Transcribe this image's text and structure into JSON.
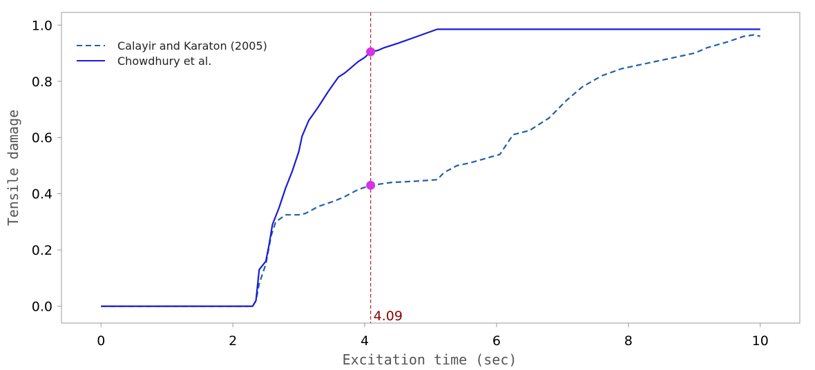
{
  "chart_data": {
    "type": "line",
    "xlabel": "Excitation time (sec)",
    "ylabel": "Tensile damage",
    "xlim": [
      -0.6,
      10.6
    ],
    "ylim": [
      -0.06,
      1.045
    ],
    "xticks": [
      0,
      2,
      4,
      6,
      8,
      10
    ],
    "xtick_labels": [
      "0",
      "2",
      "4",
      "6",
      "8",
      "10"
    ],
    "yticks": [
      0.0,
      0.2,
      0.4,
      0.6,
      0.8,
      1.0
    ],
    "ytick_labels": [
      "0.0",
      "0.2",
      "0.4",
      "0.6",
      "0.8",
      "1.0"
    ],
    "grid": false,
    "legend_position": "top-left",
    "series": [
      {
        "name": "Calayir and Karaton (2005)",
        "style": "dashed",
        "color": "#1f5fa8",
        "x": [
          0,
          2.3,
          2.35,
          2.4,
          2.5,
          2.58,
          2.65,
          2.8,
          3.0,
          3.1,
          3.3,
          3.55,
          3.7,
          3.9,
          4.09,
          4.4,
          4.8,
          5.1,
          5.2,
          5.4,
          5.6,
          5.75,
          5.9,
          6.05,
          6.25,
          6.5,
          6.8,
          7.05,
          7.3,
          7.6,
          7.9,
          8.3,
          8.7,
          9.0,
          9.2,
          9.5,
          9.75,
          9.9,
          10.0
        ],
        "y": [
          0.0,
          0.0,
          0.02,
          0.08,
          0.15,
          0.25,
          0.3,
          0.325,
          0.325,
          0.33,
          0.355,
          0.375,
          0.39,
          0.415,
          0.43,
          0.44,
          0.445,
          0.45,
          0.475,
          0.5,
          0.51,
          0.52,
          0.53,
          0.54,
          0.61,
          0.625,
          0.67,
          0.73,
          0.78,
          0.82,
          0.845,
          0.865,
          0.885,
          0.9,
          0.92,
          0.94,
          0.96,
          0.965,
          0.96
        ]
      },
      {
        "name": "Chowdhury et al.",
        "style": "solid",
        "color": "#1a1ad6",
        "x": [
          0,
          2.3,
          2.35,
          2.4,
          2.5,
          2.55,
          2.6,
          2.7,
          2.8,
          2.9,
          3.0,
          3.05,
          3.15,
          3.3,
          3.45,
          3.6,
          3.7,
          3.8,
          3.9,
          4.0,
          4.09,
          4.2,
          4.3,
          4.5,
          4.8,
          5.1,
          6.0,
          7.0,
          8.0,
          9.0,
          10.0
        ],
        "y": [
          0.0,
          0.0,
          0.02,
          0.13,
          0.16,
          0.22,
          0.29,
          0.35,
          0.42,
          0.48,
          0.55,
          0.605,
          0.66,
          0.71,
          0.765,
          0.815,
          0.83,
          0.85,
          0.87,
          0.885,
          0.905,
          0.91,
          0.92,
          0.935,
          0.96,
          0.985,
          0.985,
          0.985,
          0.985,
          0.985,
          0.985
        ]
      }
    ],
    "vline": {
      "x": 4.09,
      "label": "4.09",
      "color": "#b22222"
    },
    "highlight_points": [
      {
        "x": 4.09,
        "y": 0.905,
        "series": "Chowdhury et al."
      },
      {
        "x": 4.09,
        "y": 0.43,
        "series": "Calayir and Karaton (2005)"
      }
    ],
    "highlight_color": "#d633e6"
  }
}
